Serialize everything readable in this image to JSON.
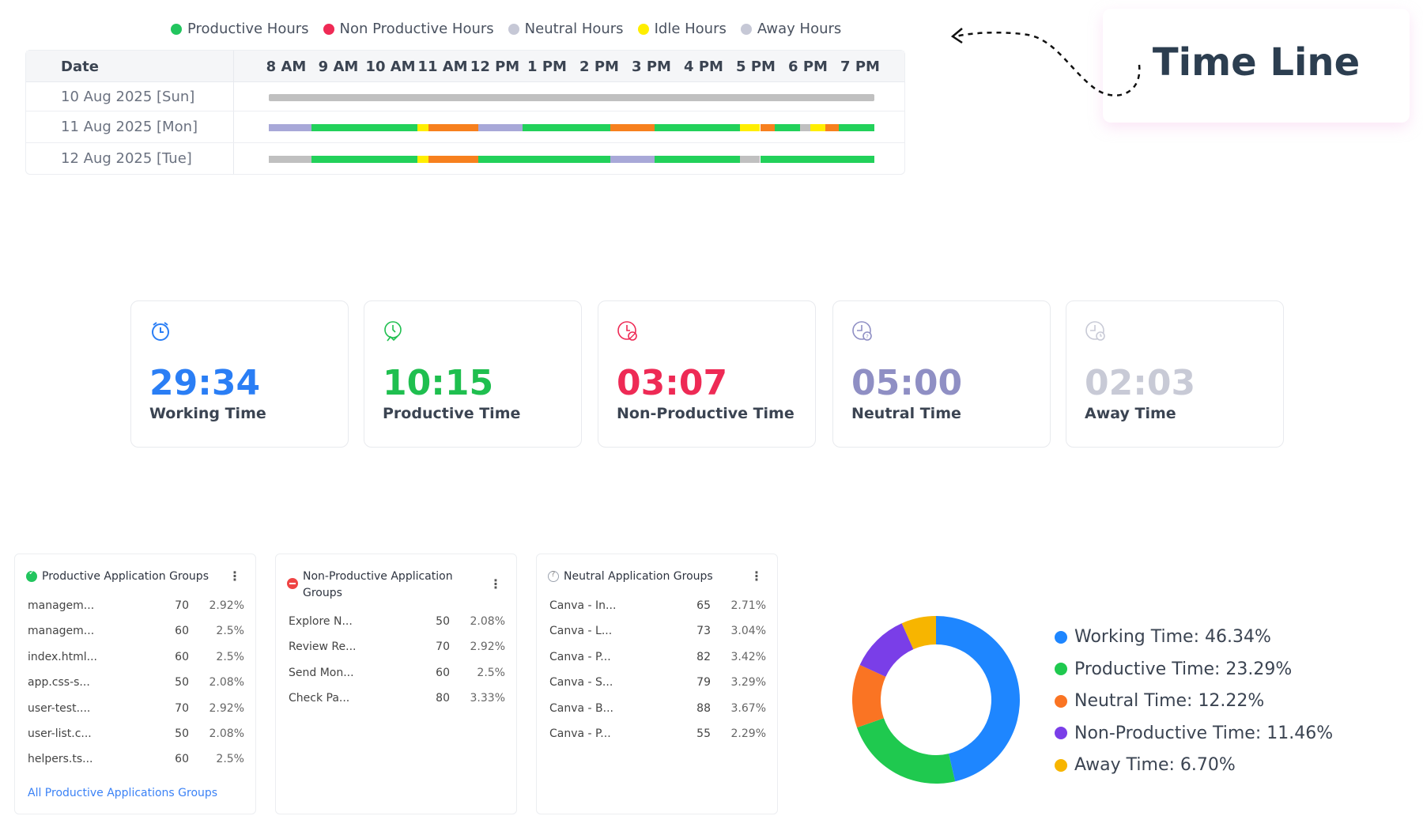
{
  "legend": [
    {
      "label": "Productive Hours",
      "color": "#22c55e"
    },
    {
      "label": "Non Productive Hours",
      "color": "#ef2a55"
    },
    {
      "label": "Neutral Hours",
      "color": "#c6c8d6"
    },
    {
      "label": "Idle Hours",
      "color": "#ffee00"
    },
    {
      "label": "Away Hours",
      "color": "#c6c8d6"
    }
  ],
  "timeline": {
    "date_header": "Date",
    "hours": [
      "8 AM",
      "9 AM",
      "10 AM",
      "11 AM",
      "12 PM",
      "1 PM",
      "2 PM",
      "3 PM",
      "4 PM",
      "5 PM",
      "6 PM",
      "7 PM"
    ],
    "segment_colors": {
      "productive": "#22d15a",
      "nonproductive": "#f7801e",
      "neutral": "#a8a8d8",
      "idle": "#ffee00",
      "away": "#c0c0c0"
    },
    "rows": [
      {
        "date": "10 Aug 2025 [Sun]",
        "segments": [
          [
            "07:40",
            "19:16",
            "away"
          ]
        ]
      },
      {
        "date": "11 Aug 2025 [Mon]",
        "segments": [
          [
            "07:40",
            "08:29",
            "neutral"
          ],
          [
            "08:29",
            "10:31",
            "productive"
          ],
          [
            "10:31",
            "10:44",
            "idle"
          ],
          [
            "10:44",
            "11:41",
            "nonproductive"
          ],
          [
            "11:41",
            "12:32",
            "neutral"
          ],
          [
            "12:32",
            "14:13",
            "productive"
          ],
          [
            "14:13",
            "15:04",
            "nonproductive"
          ],
          [
            "15:04",
            "16:42",
            "productive"
          ],
          [
            "16:42",
            "17:05",
            "idle"
          ],
          [
            "17:05",
            "17:22",
            "nonproductive"
          ],
          [
            "17:22",
            "17:51",
            "productive"
          ],
          [
            "17:51",
            "18:03",
            "away"
          ],
          [
            "18:03",
            "18:20",
            "idle"
          ],
          [
            "18:20",
            "18:35",
            "nonproductive"
          ],
          [
            "18:35",
            "19:16",
            "productive"
          ]
        ]
      },
      {
        "date": "12 Aug 2025 [Tue]",
        "segments": [
          [
            "07:40",
            "08:29",
            "away"
          ],
          [
            "08:29",
            "10:31",
            "productive"
          ],
          [
            "10:31",
            "10:44",
            "idle"
          ],
          [
            "10:44",
            "11:41",
            "nonproductive"
          ],
          [
            "11:41",
            "14:13",
            "productive"
          ],
          [
            "14:13",
            "15:04",
            "neutral"
          ],
          [
            "15:04",
            "16:42",
            "productive"
          ],
          [
            "16:42",
            "17:05",
            "away"
          ],
          [
            "17:05",
            "19:16",
            "productive"
          ]
        ]
      }
    ]
  },
  "timeline_card": {
    "title": "Time Line"
  },
  "stats": [
    {
      "value": "29:34",
      "label": "Working Time",
      "color": "#2a7ef5",
      "icon": "alarm-clock-icon"
    },
    {
      "value": "10:15",
      "label": "Productive Time",
      "color": "#1fbf4f",
      "icon": "productive-clock-icon"
    },
    {
      "value": "03:07",
      "label": "Non-Productive Time",
      "color": "#ee2a55",
      "icon": "nonproductive-clock-icon"
    },
    {
      "value": "05:00",
      "label": "Neutral Time",
      "color": "#8f8fc4",
      "icon": "neutral-clock-icon"
    },
    {
      "value": "02:03",
      "label": "Away Time",
      "color": "#c8cad6",
      "icon": "away-clock-icon"
    }
  ],
  "panels": [
    {
      "title": "Productive Application Groups",
      "icon": "check-circle-icon",
      "color": "#22c55e",
      "rows": [
        [
          "managem...",
          "70",
          "2.92%"
        ],
        [
          "managem...",
          "60",
          "2.5%"
        ],
        [
          "index.html...",
          "60",
          "2.5%"
        ],
        [
          "app.css-s...",
          "50",
          "2.08%"
        ],
        [
          "user-test....",
          "70",
          "2.92%"
        ],
        [
          "user-list.c...",
          "50",
          "2.08%"
        ],
        [
          "helpers.ts...",
          "60",
          "2.5%"
        ]
      ],
      "link": "All Productive Applications Groups"
    },
    {
      "title": "Non-Productive Application Groups",
      "icon": "minus-circle-icon",
      "color": "#ef4444",
      "rows": [
        [
          "Explore N...",
          "50",
          "2.08%"
        ],
        [
          "Review Re...",
          "70",
          "2.92%"
        ],
        [
          "Send Mon...",
          "60",
          "2.5%"
        ],
        [
          "Check Pa...",
          "80",
          "3.33%"
        ]
      ]
    },
    {
      "title": "Neutral Application Groups",
      "icon": "question-circle-icon",
      "color": "#9ca3af",
      "rows": [
        [
          "Canva - In...",
          "65",
          "2.71%"
        ],
        [
          "Canva - L...",
          "73",
          "3.04%"
        ],
        [
          "Canva - P...",
          "82",
          "3.42%"
        ],
        [
          "Canva - S...",
          "79",
          "3.29%"
        ],
        [
          "Canva - B...",
          "88",
          "3.67%"
        ],
        [
          "Canva - P...",
          "55",
          "2.29%"
        ]
      ]
    }
  ],
  "chart_data": {
    "type": "pie",
    "donut": true,
    "legend_position": "right",
    "categories": [
      "Working Time",
      "Productive Time",
      "Neutral Time",
      "Non-Productive Time",
      "Away Time"
    ],
    "values": [
      46.34,
      23.29,
      12.22,
      11.46,
      6.7
    ],
    "labels": [
      "Working Time: 46.34%",
      "Productive Time: 23.29%",
      "Neutral Time: 12.22%",
      "Non-Productive Time: 11.46%",
      "Away Time: 6.70%"
    ],
    "colors": [
      "#1e86ff",
      "#1fc94f",
      "#fa7423",
      "#7a3ee8",
      "#f7b500"
    ]
  }
}
